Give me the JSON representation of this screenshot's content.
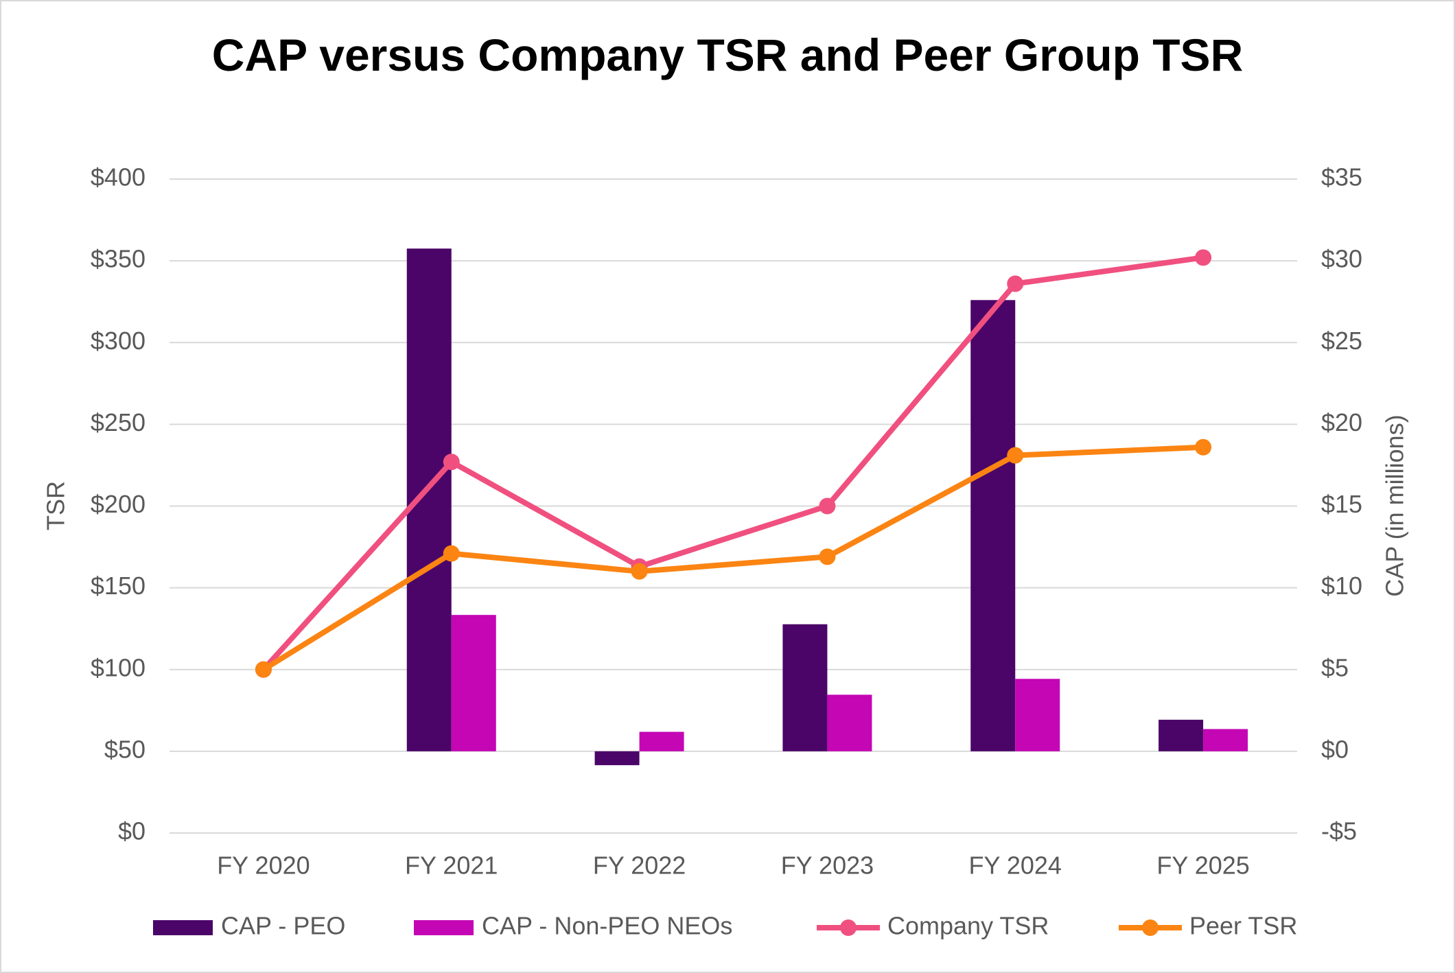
{
  "chart_data": {
    "type": "bar+line",
    "title": "CAP versus Company TSR and Peer Group TSR",
    "ylabel": "TSR",
    "y2label": "CAP (in millions)",
    "categories": [
      "FY 2020",
      "FY 2021",
      "FY 2022",
      "FY 2023",
      "FY 2024",
      "FY 2025"
    ],
    "series": [
      {
        "name": "CAP - PEO",
        "type": "bar",
        "axis": "y2",
        "color": "#4b0468",
        "values": [
          null,
          30.75,
          -0.85,
          7.77,
          27.6,
          1.93
        ]
      },
      {
        "name": "CAP - Non-PEO NEOs",
        "type": "bar",
        "axis": "y2",
        "color": "#c406b4",
        "values": [
          null,
          8.34,
          1.19,
          3.46,
          4.43,
          1.36
        ]
      },
      {
        "name": "Company TSR",
        "type": "line",
        "axis": "y",
        "color": "#f0507f",
        "values": [
          100,
          227,
          163,
          200,
          336,
          352
        ]
      },
      {
        "name": "Peer TSR",
        "type": "line",
        "axis": "y",
        "color": "#fb8412",
        "values": [
          100,
          171,
          160,
          169,
          231,
          236
        ]
      }
    ],
    "ylim": [
      0,
      400
    ],
    "yticks": [
      {
        "value": 0,
        "label": "$0"
      },
      {
        "value": 50,
        "label": "$50"
      },
      {
        "value": 100,
        "label": "$100"
      },
      {
        "value": 150,
        "label": "$150"
      },
      {
        "value": 200,
        "label": "$200"
      },
      {
        "value": 250,
        "label": "$250"
      },
      {
        "value": 300,
        "label": "$300"
      },
      {
        "value": 350,
        "label": "$350"
      },
      {
        "value": 400,
        "label": "$400"
      }
    ],
    "y2lim": [
      -5,
      35
    ],
    "y2ticks": [
      {
        "value": -5,
        "label": "-$5"
      },
      {
        "value": 0,
        "label": "$0"
      },
      {
        "value": 5,
        "label": "$5"
      },
      {
        "value": 10,
        "label": "$10"
      },
      {
        "value": 15,
        "label": "$15"
      },
      {
        "value": 20,
        "label": "$20"
      },
      {
        "value": 25,
        "label": "$25"
      },
      {
        "value": 30,
        "label": "$30"
      },
      {
        "value": 35,
        "label": "$35"
      }
    ],
    "grid": true,
    "legend": "bottom"
  }
}
